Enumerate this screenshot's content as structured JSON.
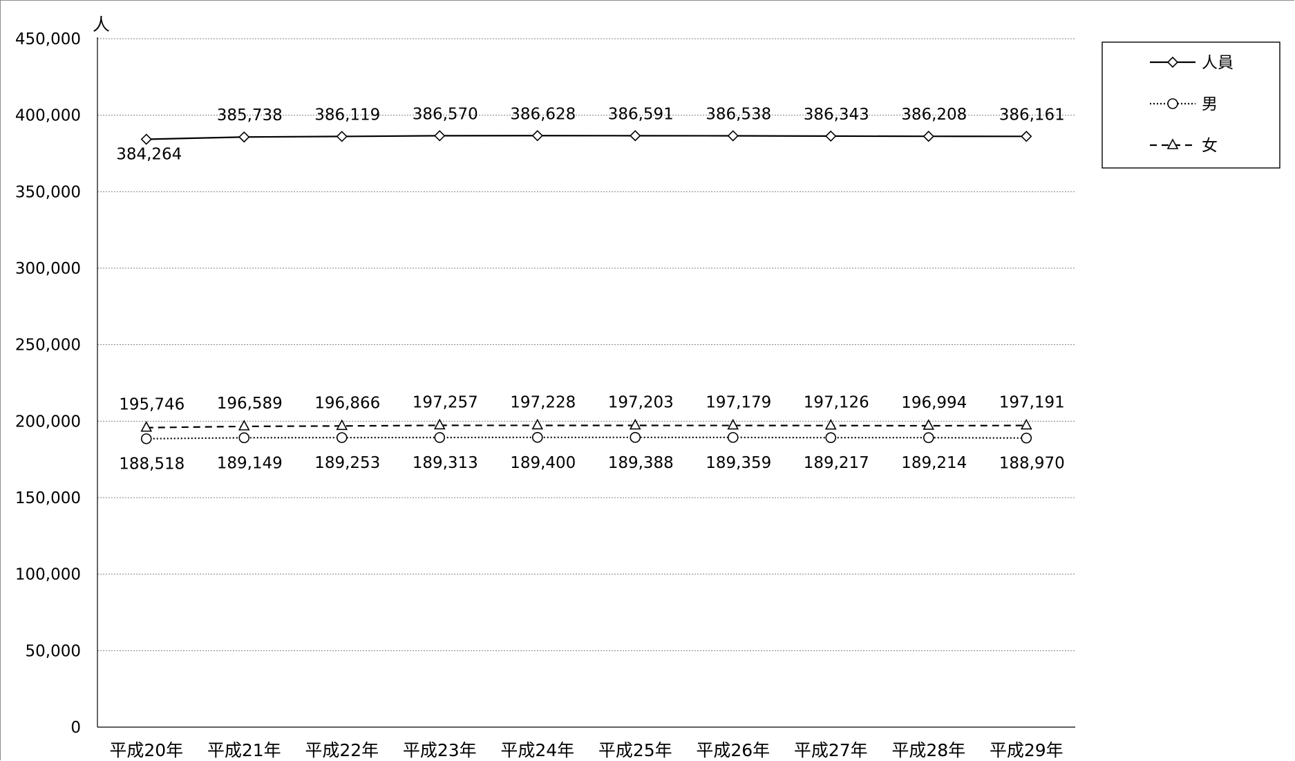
{
  "chart_data": {
    "type": "line",
    "ylabel": "人",
    "ylim": [
      0,
      450000
    ],
    "yticks": [
      0,
      50000,
      100000,
      150000,
      200000,
      250000,
      300000,
      350000,
      400000,
      450000
    ],
    "ytick_labels": [
      "0",
      "50,000",
      "100,000",
      "150,000",
      "200,000",
      "250,000",
      "300,000",
      "350,000",
      "400,000",
      "450,000"
    ],
    "grid": true,
    "legend_position": "top-right",
    "categories": [
      "平成20年",
      "平成21年",
      "平成22年",
      "平成23年",
      "平成24年",
      "平成25年",
      "平成26年",
      "平成27年",
      "平成28年",
      "平成29年"
    ],
    "series": [
      {
        "name": "人員",
        "marker": "diamond",
        "line_style": "solid",
        "label_position": "mixed",
        "values": [
          384264,
          385738,
          386119,
          386570,
          386628,
          386591,
          386538,
          386343,
          386208,
          386161
        ],
        "labels": [
          "384,264",
          "385,738",
          "386,119",
          "386,570",
          "386,628",
          "386,591",
          "386,538",
          "386,343",
          "386,208",
          "386,161"
        ]
      },
      {
        "name": "男",
        "marker": "circle",
        "line_style": "dotted",
        "label_position": "below",
        "values": [
          188518,
          189149,
          189253,
          189313,
          189400,
          189388,
          189359,
          189217,
          189214,
          188970
        ],
        "labels": [
          "188,518",
          "189,149",
          "189,253",
          "189,313",
          "189,400",
          "189,388",
          "189,359",
          "189,217",
          "189,214",
          "188,970"
        ]
      },
      {
        "name": "女",
        "marker": "triangle",
        "line_style": "dashed",
        "label_position": "above",
        "values": [
          195746,
          196589,
          196866,
          197257,
          197228,
          197203,
          197179,
          197126,
          196994,
          197191
        ],
        "labels": [
          "195,746",
          "196,589",
          "196,866",
          "197,257",
          "197,228",
          "197,203",
          "197,179",
          "197,126",
          "196,994",
          "197,191"
        ]
      }
    ]
  }
}
